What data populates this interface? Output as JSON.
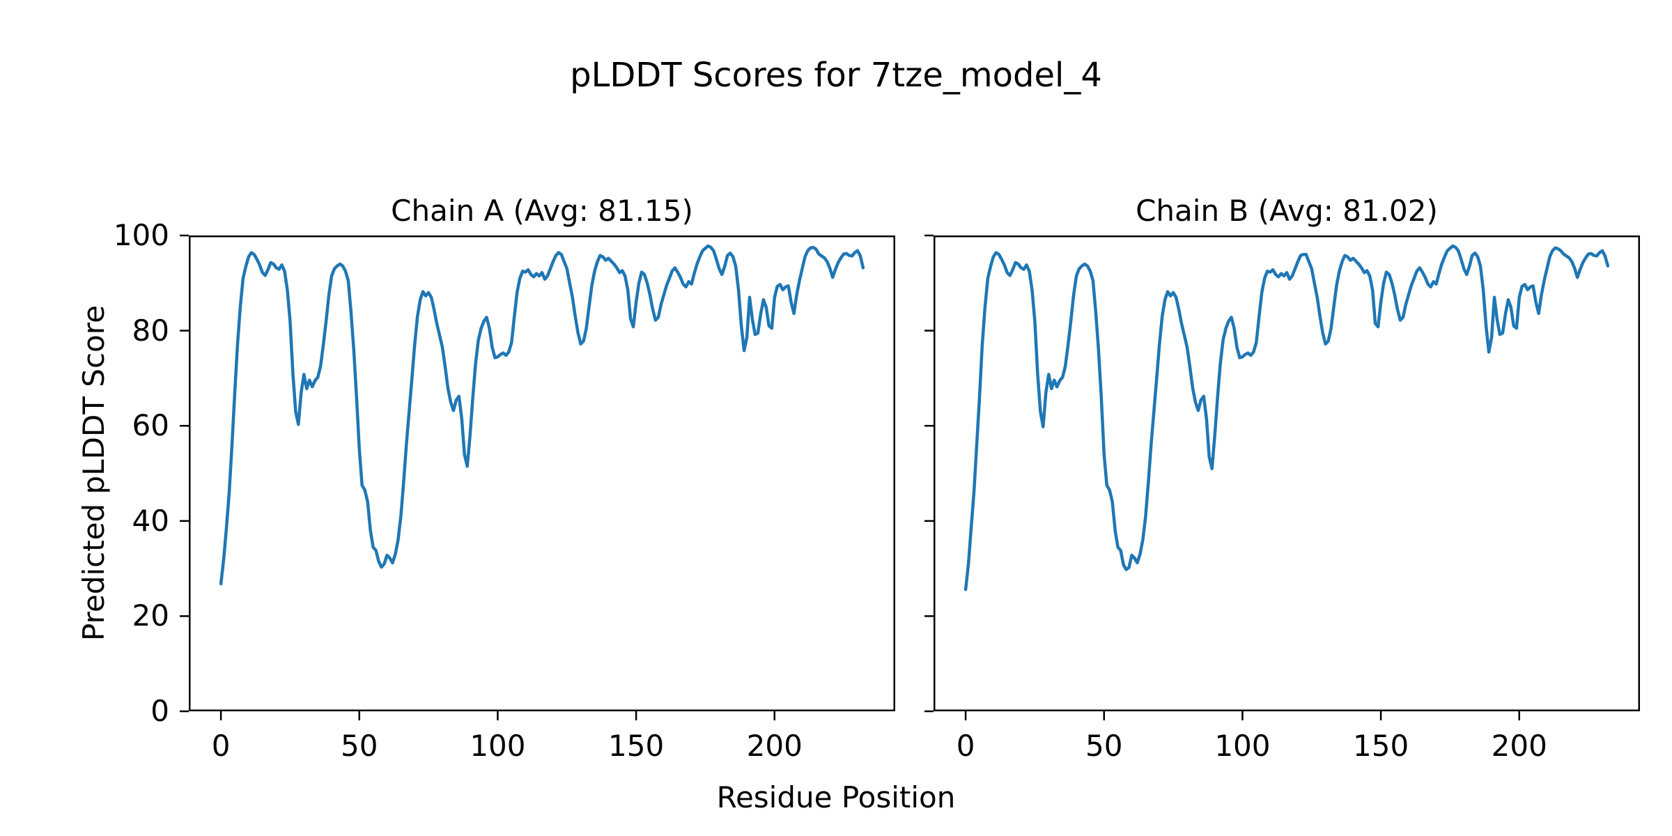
{
  "figure": {
    "suptitle": "pLDDT Scores for 7tze_model_4",
    "xlabel": "Residue Position",
    "ylabel": "Predicted pLDDT Score",
    "background": "#ffffff",
    "text_color": "#000000"
  },
  "chart_data": [
    {
      "type": "line",
      "title": "Chain A (Avg: 81.15)",
      "chain": "A",
      "avg": 81.15,
      "line_color": "#1f77b4",
      "x_start": 0,
      "x_step": 1,
      "xlim": [
        -11.6,
        243.6
      ],
      "ylim": [
        0,
        100
      ],
      "xticks": [
        0,
        50,
        100,
        150,
        200
      ],
      "yticks": [
        0,
        20,
        40,
        60,
        80,
        100
      ],
      "show_y_tick_labels": true,
      "grid": false,
      "legend": "none",
      "values": [
        26.8,
        32,
        38.5,
        46,
        56,
        67,
        77,
        85,
        91,
        93.5,
        95.5,
        96.4,
        96,
        95,
        93.8,
        92.2,
        91.6,
        92.8,
        94.3,
        94,
        93.2,
        92.9,
        93.8,
        92.5,
        88.5,
        82,
        71,
        63,
        60.3,
        67,
        70.8,
        67.8,
        69.6,
        68.2,
        69.5,
        70.2,
        72.5,
        77,
        82,
        87.5,
        91.5,
        93,
        93.6,
        94,
        93.6,
        92.5,
        90.5,
        84,
        76,
        66,
        55,
        47.5,
        46.5,
        44,
        38,
        34.5,
        33.8,
        31.5,
        30.3,
        31,
        32.8,
        32.2,
        31.2,
        33,
        36,
        41,
        48,
        56,
        63,
        70,
        77,
        83,
        86.5,
        88.2,
        87.3,
        88,
        87,
        84.5,
        81.5,
        79,
        76.5,
        72.5,
        68,
        65,
        63.2,
        65.4,
        66.2,
        61.5,
        54,
        51.5,
        58,
        66,
        73,
        78,
        80.5,
        82,
        82.8,
        80.5,
        76.5,
        74.3,
        74.5,
        75,
        75.3,
        74.8,
        75.5,
        77.5,
        83,
        88,
        91,
        92.5,
        92.3,
        92.8,
        91.8,
        91.3,
        92,
        91.5,
        92.2,
        90.8,
        91.5,
        93,
        94.5,
        95.8,
        96.4,
        96,
        94.5,
        93,
        90,
        87,
        83,
        79.5,
        77.2,
        77.8,
        80.5,
        85,
        89.5,
        92.5,
        94.5,
        95.8,
        95.5,
        94.8,
        95.2,
        94.6,
        94,
        93.2,
        92.2,
        92.6,
        91.5,
        88.5,
        82.5,
        80.8,
        86,
        90,
        92.3,
        91.8,
        90,
        87.5,
        84.5,
        82.2,
        82.8,
        85.5,
        87.5,
        89.5,
        91,
        92.5,
        93.2,
        92.3,
        91.2,
        89.8,
        89.2,
        90.3,
        89.8,
        92,
        94,
        95.5,
        96.8,
        97.3,
        97.8,
        97.5,
        96.8,
        95,
        93,
        91.8,
        93.5,
        95.8,
        96.3,
        95.5,
        93.5,
        88.5,
        81,
        75.8,
        78.5,
        87,
        82.3,
        79.2,
        79.5,
        83.5,
        86.5,
        84.9,
        81,
        80.5,
        87,
        89.3,
        89.7,
        88.6,
        89.2,
        89.4,
        86,
        83.6,
        87.5,
        90.5,
        93,
        95.5,
        96.8,
        97.4,
        97.5,
        97.1,
        96.1,
        95.7,
        95.3,
        94.5,
        93.1,
        91.2,
        92.9,
        94.3,
        95.3,
        96.1,
        96.2,
        95.8,
        95.7,
        96.4,
        96.8,
        95.7,
        93.2
      ]
    },
    {
      "type": "line",
      "title": "Chain B (Avg: 81.02)",
      "chain": "B",
      "avg": 81.02,
      "line_color": "#1f77b4",
      "x_start": 0,
      "x_step": 1,
      "xlim": [
        -11.6,
        243.6
      ],
      "ylim": [
        0,
        100
      ],
      "xticks": [
        0,
        50,
        100,
        150,
        200
      ],
      "yticks": [
        0,
        20,
        40,
        60,
        80,
        100
      ],
      "show_y_tick_labels": false,
      "grid": false,
      "legend": "none",
      "values": [
        25.6,
        31,
        38.5,
        46,
        56,
        66,
        77,
        85,
        91,
        93.5,
        95.5,
        96.4,
        96,
        95,
        93.8,
        92.2,
        91.6,
        92.8,
        94.3,
        94,
        93.2,
        92.9,
        93.8,
        92.5,
        88.5,
        82,
        71,
        63,
        59.8,
        67,
        70.8,
        67.8,
        69.6,
        68.2,
        69.5,
        70.2,
        72.5,
        77,
        82,
        87.5,
        91.5,
        93,
        93.6,
        94,
        93.6,
        92.5,
        90.5,
        84,
        76,
        66,
        54,
        47.5,
        46.5,
        44,
        38,
        34.5,
        33.8,
        30.8,
        29.8,
        30.2,
        32.8,
        32.2,
        31.2,
        33,
        36,
        41,
        48,
        56,
        63,
        70,
        77,
        83,
        86.5,
        88.2,
        87.3,
        88,
        87,
        84.5,
        81.5,
        79,
        76.5,
        72.5,
        68,
        65,
        63.2,
        65.4,
        66.2,
        61.5,
        53.5,
        51,
        58,
        66,
        73,
        78,
        80.5,
        82,
        82.8,
        80.5,
        76.5,
        74.3,
        74.5,
        75,
        75.3,
        74.8,
        75.5,
        77.5,
        83,
        88,
        91,
        92.5,
        92.3,
        92.8,
        91.8,
        91.3,
        92,
        91.5,
        92.2,
        90.8,
        91.5,
        93,
        94.5,
        95.8,
        96,
        96,
        94.5,
        93,
        90,
        87,
        83,
        79.5,
        77.2,
        77.8,
        80.5,
        85,
        89.5,
        92.5,
        94.5,
        95.8,
        95.5,
        94.8,
        95.2,
        94.6,
        94,
        93.2,
        92.2,
        92.6,
        91.5,
        88.5,
        81.5,
        80.8,
        86,
        90,
        92.3,
        91.8,
        90,
        87.5,
        84.5,
        82.2,
        82.8,
        85.5,
        87.5,
        89.5,
        91,
        92.5,
        93.2,
        92.3,
        91.2,
        89.8,
        89.2,
        90.3,
        89.8,
        92,
        94,
        95.5,
        96.8,
        97.3,
        97.8,
        97.5,
        96.8,
        95,
        93,
        91.8,
        93.5,
        95.8,
        96.3,
        95.5,
        93.5,
        88.5,
        81,
        75.5,
        78.5,
        87,
        82.3,
        79.2,
        79.5,
        83.5,
        86.5,
        84.9,
        81,
        80.5,
        87,
        89.3,
        89.7,
        88.6,
        89.2,
        89.4,
        86,
        83.6,
        87.5,
        90.5,
        93,
        95.5,
        96.8,
        97.4,
        97.2,
        96.8,
        96.1,
        95.7,
        95.3,
        94.5,
        93.1,
        91.2,
        92.9,
        94.3,
        95.3,
        96.1,
        96.2,
        95.8,
        95.7,
        96.4,
        96.8,
        95.7,
        93.6
      ]
    }
  ],
  "layout_meta": {
    "spine_color": "#000000",
    "tick_color": "#000000"
  }
}
